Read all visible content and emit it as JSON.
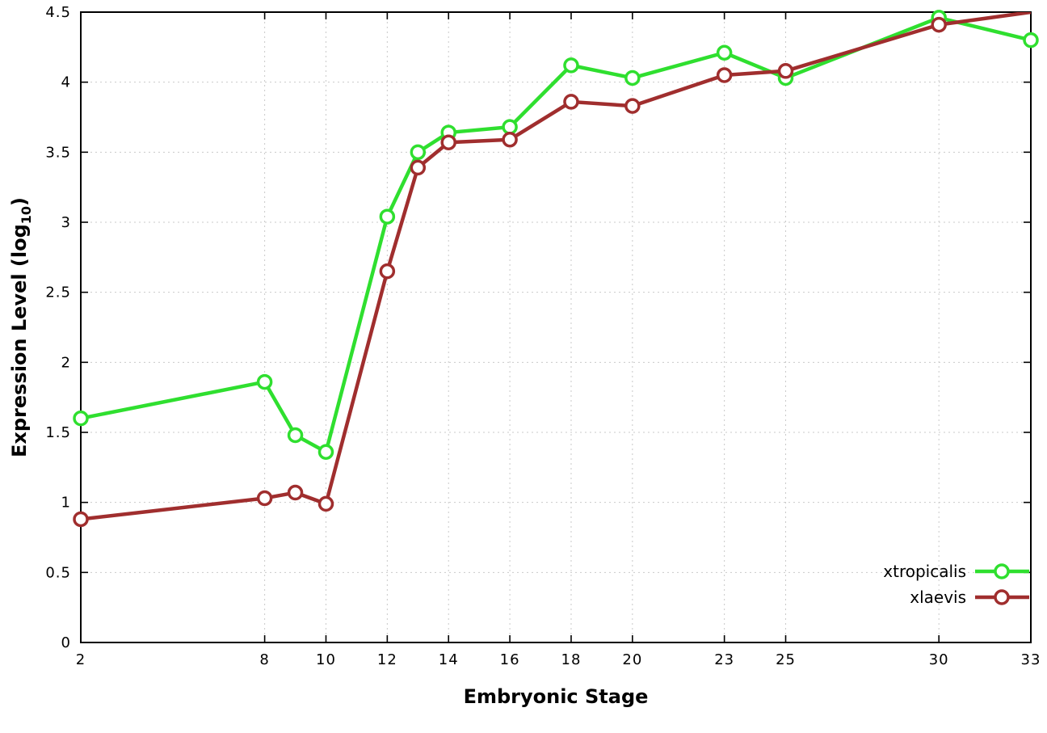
{
  "chart_data": {
    "type": "line",
    "title": "",
    "xlabel": "Embryonic Stage",
    "ylabel": {
      "main": "Expression Level (log",
      "sub": "10",
      "end": ")"
    },
    "xlim": [
      2,
      33
    ],
    "ylim": [
      0,
      4.5
    ],
    "xticks": [
      2,
      8,
      10,
      12,
      14,
      16,
      18,
      20,
      23,
      25,
      30,
      33
    ],
    "xtick_labels": [
      "2",
      "8",
      "10",
      "12",
      "14",
      "16",
      "18",
      "20",
      "23",
      "25",
      "30",
      "33"
    ],
    "yticks": [
      0,
      0.5,
      1,
      1.5,
      2,
      2.5,
      3,
      3.5,
      4,
      4.5
    ],
    "ytick_labels": [
      "0",
      "0.5",
      "1",
      "1.5",
      "2",
      "2.5",
      "3",
      "3.5",
      "4",
      "4.5"
    ],
    "grid": true,
    "legend_position": "bottom-right",
    "marker": "open-circle",
    "colors": {
      "background": "#ffffff",
      "grid": "#c9c9c9",
      "axis": "#000000",
      "text": "#000000"
    },
    "x": [
      2,
      8,
      9,
      10,
      12,
      13,
      14,
      16,
      18,
      20,
      23,
      25,
      30,
      33
    ],
    "series": [
      {
        "name": "xtropicalis",
        "color": "#2fdf2f",
        "values": [
          1.6,
          1.86,
          1.48,
          1.36,
          3.04,
          3.5,
          3.64,
          3.68,
          4.12,
          4.03,
          4.21,
          4.03,
          4.46,
          4.3
        ]
      },
      {
        "name": "xlaevis",
        "color": "#a02e2e",
        "values": [
          0.88,
          1.03,
          1.07,
          0.99,
          2.65,
          3.39,
          3.57,
          3.59,
          3.86,
          3.83,
          4.05,
          4.08,
          4.41,
          4.5
        ],
        "hide_markers_at": [
          33
        ]
      }
    ]
  }
}
